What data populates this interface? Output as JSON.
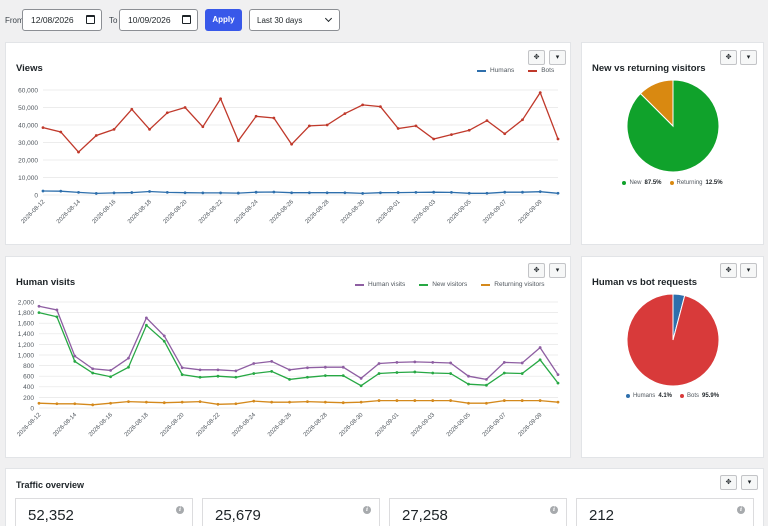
{
  "filters": {
    "from_label": "From",
    "from_date": "12/08/2026",
    "to_label": "To",
    "to_date": "10/09/2026",
    "apply_label": "Apply",
    "range_selected": "Last 30 days"
  },
  "controls": {
    "move_glyph": "✥",
    "menu_glyph": "▾"
  },
  "views_card": {
    "title": "Views"
  },
  "human_card": {
    "title": "Human visits"
  },
  "newret_card": {
    "title": "New vs returning visitors"
  },
  "hvb_card": {
    "title": "Human vs bot requests"
  },
  "traffic": {
    "title": "Traffic overview",
    "stats": [
      {
        "value": "52,352"
      },
      {
        "value": "25,679"
      },
      {
        "value": "27,258"
      },
      {
        "value": "212"
      }
    ]
  },
  "chart_data": [
    {
      "type": "line",
      "title": "Views",
      "x": [
        "2026-08-12",
        "2026-08-13",
        "2026-08-14",
        "2026-08-15",
        "2026-08-16",
        "2026-08-17",
        "2026-08-18",
        "2026-08-19",
        "2026-08-20",
        "2026-08-21",
        "2026-08-22",
        "2026-08-23",
        "2026-08-24",
        "2026-08-25",
        "2026-08-26",
        "2026-08-27",
        "2026-08-28",
        "2026-08-29",
        "2026-08-30",
        "2026-08-31",
        "2026-09-01",
        "2026-09-02",
        "2026-09-03",
        "2026-09-04",
        "2026-09-05",
        "2026-09-06",
        "2026-09-07",
        "2026-09-08",
        "2026-09-09",
        "2026-09-10"
      ],
      "tick_labels": [
        "2026-08-12",
        "2026-08-14",
        "2026-08-16",
        "2026-08-18",
        "2026-08-20",
        "2026-08-22",
        "2026-08-24",
        "2026-08-26",
        "2026-08-28",
        "2026-08-30",
        "2026-09-01",
        "2026-09-03",
        "2026-09-05",
        "2026-09-07",
        "2026-09-09"
      ],
      "y_ticks": [
        "0",
        "10,000",
        "20,000",
        "30,000",
        "40,000",
        "50,000",
        "60,000"
      ],
      "ylim": [
        0,
        60000
      ],
      "grid": true,
      "legend_position": "top-right",
      "series": [
        {
          "name": "Humans",
          "color": "#2e6fac",
          "values": [
            2300,
            2200,
            1500,
            900,
            1200,
            1400,
            2000,
            1500,
            1300,
            1200,
            1200,
            1100,
            1600,
            1700,
            1300,
            1300,
            1300,
            1300,
            900,
            1300,
            1400,
            1500,
            1600,
            1500,
            1000,
            1000,
            1600,
            1600,
            1900,
            1000
          ]
        },
        {
          "name": "Bots",
          "color": "#c0392b",
          "values": [
            38500,
            36000,
            24500,
            34000,
            37500,
            49000,
            37500,
            47000,
            50000,
            39000,
            55000,
            31000,
            45000,
            44000,
            29000,
            39500,
            40000,
            46500,
            51500,
            50500,
            38000,
            39500,
            32000,
            34500,
            37000,
            42500,
            35000,
            43000,
            58500,
            32000
          ]
        }
      ]
    },
    {
      "type": "line",
      "title": "Human visits",
      "x": [
        "2026-08-12",
        "2026-08-13",
        "2026-08-14",
        "2026-08-15",
        "2026-08-16",
        "2026-08-17",
        "2026-08-18",
        "2026-08-19",
        "2026-08-20",
        "2026-08-21",
        "2026-08-22",
        "2026-08-23",
        "2026-08-24",
        "2026-08-25",
        "2026-08-26",
        "2026-08-27",
        "2026-08-28",
        "2026-08-29",
        "2026-08-30",
        "2026-08-31",
        "2026-09-01",
        "2026-09-02",
        "2026-09-03",
        "2026-09-04",
        "2026-09-05",
        "2026-09-06",
        "2026-09-07",
        "2026-09-08",
        "2026-09-09",
        "2026-09-10"
      ],
      "tick_labels": [
        "2026-08-12",
        "2026-08-14",
        "2026-08-16",
        "2026-08-18",
        "2026-08-20",
        "2026-08-22",
        "2026-08-24",
        "2026-08-26",
        "2026-08-28",
        "2026-08-30",
        "2026-09-01",
        "2026-09-03",
        "2026-09-05",
        "2026-09-07",
        "2026-09-09"
      ],
      "y_ticks": [
        "0",
        "200",
        "400",
        "600",
        "800",
        "1,000",
        "1,200",
        "1,400",
        "1,600",
        "1,800",
        "2,000"
      ],
      "ylim": [
        0,
        2000
      ],
      "grid": true,
      "legend_position": "top-right",
      "series": [
        {
          "name": "Human visits",
          "color": "#8e5ea2",
          "values": [
            1920,
            1850,
            980,
            740,
            710,
            940,
            1700,
            1360,
            760,
            720,
            720,
            700,
            840,
            880,
            720,
            760,
            770,
            770,
            560,
            840,
            860,
            870,
            860,
            850,
            600,
            540,
            860,
            850,
            1140,
            630
          ]
        },
        {
          "name": "New visitors",
          "color": "#27a844",
          "values": [
            1800,
            1720,
            880,
            660,
            590,
            770,
            1560,
            1260,
            630,
            580,
            600,
            580,
            650,
            690,
            540,
            580,
            610,
            610,
            420,
            650,
            670,
            680,
            660,
            650,
            450,
            430,
            660,
            650,
            910,
            470
          ]
        },
        {
          "name": "Returning visitors",
          "color": "#d4891c",
          "values": [
            90,
            80,
            80,
            60,
            90,
            120,
            110,
            100,
            110,
            120,
            70,
            80,
            130,
            110,
            110,
            120,
            110,
            100,
            110,
            140,
            140,
            140,
            140,
            140,
            90,
            90,
            140,
            140,
            140,
            110
          ]
        }
      ]
    },
    {
      "type": "pie",
      "title": "New vs returning visitors",
      "legend_position": "bottom",
      "slices": [
        {
          "label": "New",
          "value": 87.5,
          "display": "87.5%",
          "color": "#10a22b"
        },
        {
          "label": "Returning",
          "value": 12.5,
          "display": "12.5%",
          "color": "#d98911"
        }
      ]
    },
    {
      "type": "pie",
      "title": "Human vs bot requests",
      "legend_position": "bottom",
      "slices": [
        {
          "label": "Humans",
          "value": 4.1,
          "display": "4.1%",
          "color": "#2e6fac"
        },
        {
          "label": "Bots",
          "value": 95.9,
          "display": "95.9%",
          "color": "#d83a3a"
        }
      ]
    }
  ]
}
